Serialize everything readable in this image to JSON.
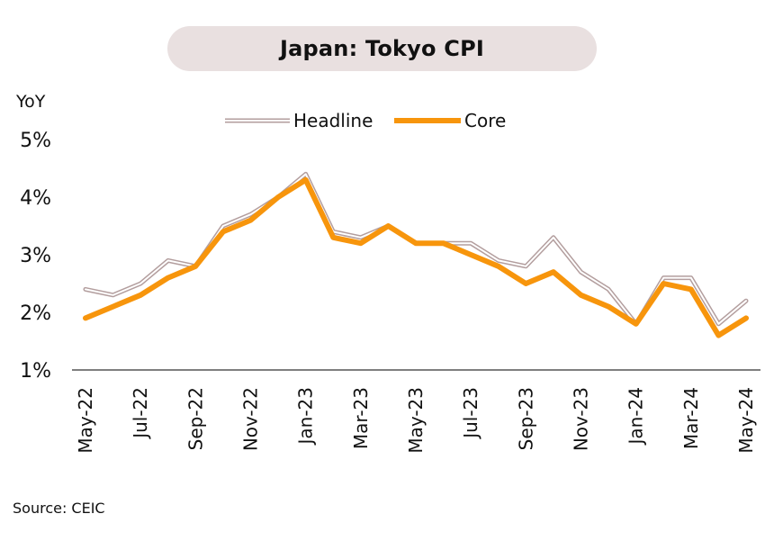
{
  "chart_data": {
    "type": "line",
    "title": "Japan: Tokyo CPI",
    "ylabel": "YoY",
    "xlabel": "",
    "source": "Source: CEIC",
    "ylim": [
      1,
      5
    ],
    "yticks": [
      "1%",
      "2%",
      "3%",
      "4%",
      "5%"
    ],
    "ytick_values": [
      1,
      2,
      3,
      4,
      5
    ],
    "x": [
      "May-22",
      "Jun-22",
      "Jul-22",
      "Aug-22",
      "Sep-22",
      "Oct-22",
      "Nov-22",
      "Dec-22",
      "Jan-23",
      "Feb-23",
      "Mar-23",
      "Apr-23",
      "May-23",
      "Jun-23",
      "Jul-23",
      "Aug-23",
      "Sep-23",
      "Oct-23",
      "Nov-23",
      "Dec-23",
      "Jan-24",
      "Feb-24",
      "Mar-24",
      "Apr-24",
      "May-24"
    ],
    "xtick_labels": [
      "May-22",
      "Jul-22",
      "Sep-22",
      "Nov-22",
      "Jan-23",
      "Mar-23",
      "May-23",
      "Jul-23",
      "Sep-23",
      "Nov-23",
      "Jan-24",
      "Mar-24",
      "May-24"
    ],
    "legend_position": "top-center",
    "grid": false,
    "series": [
      {
        "name": "Headline",
        "color": "#b39e9e",
        "values": [
          2.4,
          2.3,
          2.5,
          2.9,
          2.8,
          3.5,
          3.7,
          4.0,
          4.4,
          3.4,
          3.3,
          3.5,
          3.2,
          3.2,
          3.2,
          2.9,
          2.8,
          3.3,
          2.7,
          2.4,
          1.8,
          2.6,
          2.6,
          1.8,
          2.2
        ]
      },
      {
        "name": "Core",
        "color": "#f7950c",
        "values": [
          1.9,
          2.1,
          2.3,
          2.6,
          2.8,
          3.4,
          3.6,
          4.0,
          4.3,
          3.3,
          3.2,
          3.5,
          3.2,
          3.2,
          3.0,
          2.8,
          2.5,
          2.7,
          2.3,
          2.1,
          1.8,
          2.5,
          2.4,
          1.6,
          1.9
        ]
      }
    ]
  }
}
